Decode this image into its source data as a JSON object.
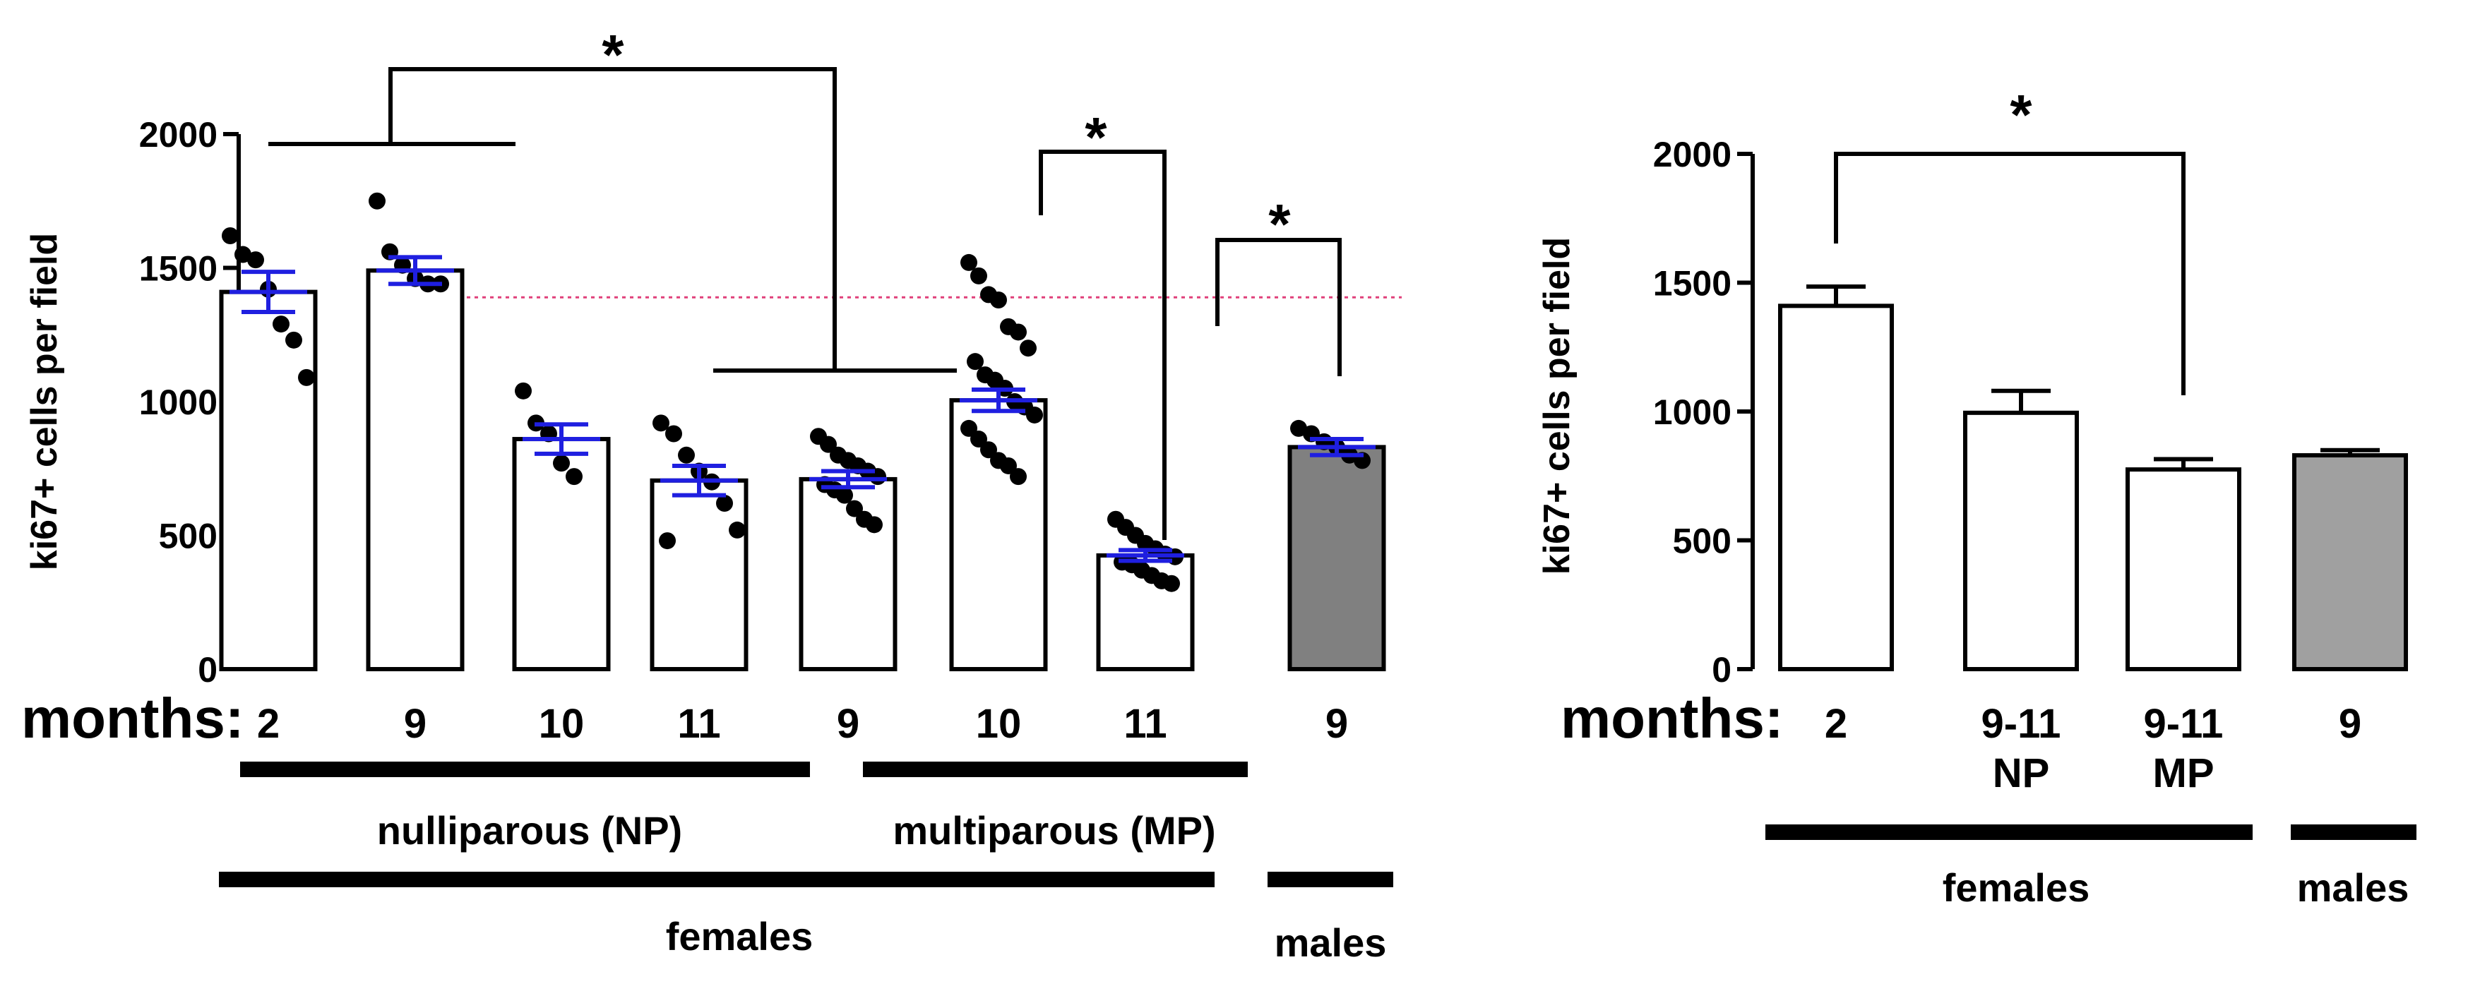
{
  "chart_data": [
    {
      "type": "bar",
      "ylabel": "ki67+ cells per field",
      "ylim": [
        0,
        2000
      ],
      "yticks": [
        0,
        500,
        1000,
        1500,
        2000
      ],
      "xlabel": "months:",
      "categories": [
        "2",
        "9",
        "10",
        "11",
        "9",
        "10",
        "11",
        "9"
      ],
      "values": [
        1410,
        1490,
        860,
        705,
        710,
        1005,
        425,
        830
      ],
      "sem": [
        75,
        50,
        55,
        55,
        30,
        40,
        20,
        30
      ],
      "bar_colors": [
        "#ffffff",
        "#ffffff",
        "#ffffff",
        "#ffffff",
        "#ffffff",
        "#ffffff",
        "#ffffff",
        "#808080"
      ],
      "points": [
        [
          1620,
          1550,
          1530,
          1420,
          1290,
          1230,
          1090
        ],
        [
          1750,
          1560,
          1510,
          1460,
          1440,
          1440
        ],
        [
          1040,
          920,
          880,
          770,
          720
        ],
        [
          920,
          880,
          800,
          740,
          700,
          620,
          520,
          480
        ],
        [
          870,
          840,
          800,
          780,
          760,
          740,
          720,
          690,
          670,
          650,
          600,
          560,
          540
        ],
        [
          1520,
          1470,
          1400,
          1380,
          1280,
          1260,
          1200,
          1150,
          1100,
          1080,
          1050,
          1000,
          980,
          950,
          900,
          860,
          820,
          780,
          760,
          720
        ],
        [
          560,
          530,
          500,
          470,
          450,
          430,
          420,
          400,
          390,
          370,
          350,
          330,
          320
        ],
        [
          900,
          880,
          850,
          830,
          800,
          780
        ]
      ],
      "reference_line": 1390,
      "significance": [
        {
          "label": "*",
          "desc": "nulliparous 2-9 vs multiparous 11-9"
        },
        {
          "label": "*",
          "desc": "MP 10 vs MP 11"
        },
        {
          "label": "*",
          "desc": "MP 11 vs males 9"
        }
      ],
      "groups": [
        {
          "label": "nulliparous (NP)"
        },
        {
          "label": "multiparous (MP)"
        },
        {
          "label": "females"
        },
        {
          "label": "males"
        }
      ]
    },
    {
      "type": "bar",
      "ylabel": "ki67+ cells per field",
      "ylim": [
        0,
        2000
      ],
      "yticks": [
        0,
        500,
        1000,
        1500,
        2000
      ],
      "xlabel": "months:",
      "categories": [
        [
          "2"
        ],
        [
          "9-11",
          "NP"
        ],
        [
          "9-11",
          "MP"
        ],
        [
          "9"
        ]
      ],
      "values": [
        1410,
        995,
        775,
        830
      ],
      "sem": [
        75,
        85,
        40,
        20
      ],
      "bar_colors": [
        "#ffffff",
        "#ffffff",
        "#ffffff",
        "#a0a0a0"
      ],
      "significance": [
        {
          "label": "*",
          "desc": "2 vs 9-11 MP"
        }
      ],
      "groups": [
        {
          "label": "females"
        },
        {
          "label": "males"
        }
      ]
    }
  ]
}
